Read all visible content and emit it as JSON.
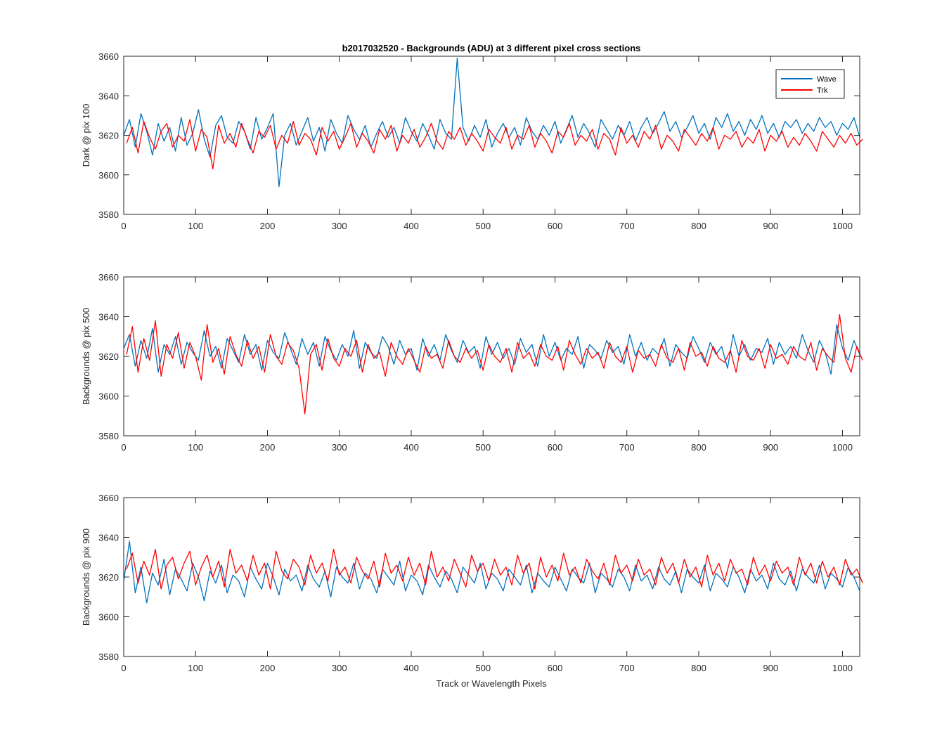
{
  "figure": {
    "title": "b2017032520 - Backgrounds (ADU) at 3 different pixel cross sections",
    "xlabel": "Track or Wavelength Pixels"
  },
  "legend": {
    "position": "top-right",
    "entries": [
      {
        "name": "Wave",
        "color": "#0072BD"
      },
      {
        "name": "Trk",
        "color": "#FF0000"
      }
    ]
  },
  "chart_data": [
    {
      "type": "line",
      "ylabel": "Dark @ pix 100",
      "xlim": [
        0,
        1024
      ],
      "ylim": [
        3580,
        3660
      ],
      "xticks": [
        0,
        100,
        200,
        300,
        400,
        500,
        600,
        700,
        800,
        900,
        1000
      ],
      "yticks": [
        3580,
        3600,
        3620,
        3640,
        3660
      ],
      "series": [
        {
          "name": "Wave",
          "color": "#0072BD",
          "x_step": 8,
          "x_start": 0,
          "values": [
            3620,
            3628,
            3614,
            3631,
            3622,
            3610,
            3626,
            3617,
            3624,
            3612,
            3629,
            3615,
            3621,
            3633,
            3618,
            3609,
            3625,
            3630,
            3619,
            3616,
            3627,
            3622,
            3613,
            3629,
            3618,
            3624,
            3631,
            3594,
            3620,
            3626,
            3615,
            3622,
            3629,
            3617,
            3624,
            3612,
            3628,
            3621,
            3616,
            3630,
            3623,
            3618,
            3625,
            3614,
            3621,
            3627,
            3619,
            3624,
            3616,
            3629,
            3622,
            3617,
            3626,
            3620,
            3613,
            3628,
            3621,
            3618,
            3659,
            3624,
            3617,
            3625,
            3619,
            3628,
            3614,
            3621,
            3626,
            3619,
            3624,
            3615,
            3629,
            3622,
            3618,
            3625,
            3620,
            3627,
            3616,
            3623,
            3630,
            3619,
            3626,
            3621,
            3614,
            3628,
            3623,
            3618,
            3625,
            3620,
            3627,
            3617,
            3624,
            3629,
            3621,
            3626,
            3632,
            3622,
            3627,
            3619,
            3624,
            3630,
            3621,
            3626,
            3618,
            3629,
            3624,
            3631,
            3622,
            3627,
            3620,
            3628,
            3623,
            3630,
            3621,
            3626,
            3619,
            3627,
            3624,
            3628,
            3621,
            3626,
            3622,
            3629,
            3624,
            3627,
            3620,
            3626,
            3623,
            3629,
            3619
          ]
        },
        {
          "name": "Trk",
          "color": "#FF0000",
          "x_step": 8,
          "x_start": 4,
          "values": [
            3616,
            3624,
            3611,
            3627,
            3619,
            3613,
            3622,
            3626,
            3614,
            3620,
            3617,
            3628,
            3612,
            3623,
            3619,
            3603,
            3625,
            3616,
            3621,
            3614,
            3626,
            3618,
            3611,
            3622,
            3619,
            3625,
            3613,
            3620,
            3616,
            3627,
            3615,
            3621,
            3618,
            3610,
            3624,
            3617,
            3622,
            3613,
            3619,
            3626,
            3614,
            3621,
            3617,
            3611,
            3623,
            3618,
            3625,
            3612,
            3620,
            3616,
            3623,
            3614,
            3619,
            3626,
            3617,
            3613,
            3622,
            3618,
            3624,
            3615,
            3621,
            3617,
            3612,
            3623,
            3619,
            3616,
            3624,
            3613,
            3620,
            3618,
            3625,
            3614,
            3621,
            3617,
            3611,
            3622,
            3619,
            3626,
            3615,
            3620,
            3617,
            3623,
            3613,
            3621,
            3618,
            3610,
            3624,
            3616,
            3620,
            3614,
            3622,
            3618,
            3625,
            3613,
            3620,
            3617,
            3612,
            3623,
            3619,
            3615,
            3621,
            3617,
            3624,
            3613,
            3620,
            3618,
            3622,
            3614,
            3619,
            3616,
            3623,
            3612,
            3620,
            3617,
            3622,
            3614,
            3619,
            3615,
            3621,
            3617,
            3612,
            3622,
            3618,
            3614,
            3620,
            3616,
            3621,
            3615,
            3618
          ]
        }
      ]
    },
    {
      "type": "line",
      "ylabel": "Backgrounds @ pix 500",
      "xlim": [
        0,
        1024
      ],
      "ylim": [
        3580,
        3660
      ],
      "xticks": [
        0,
        100,
        200,
        300,
        400,
        500,
        600,
        700,
        800,
        900,
        1000
      ],
      "yticks": [
        3580,
        3600,
        3620,
        3640,
        3660
      ],
      "series": [
        {
          "name": "Wave",
          "color": "#0072BD",
          "x_step": 8,
          "x_start": 0,
          "values": [
            3624,
            3631,
            3615,
            3628,
            3619,
            3634,
            3612,
            3626,
            3621,
            3630,
            3616,
            3627,
            3622,
            3618,
            3633,
            3620,
            3625,
            3614,
            3629,
            3623,
            3617,
            3631,
            3621,
            3626,
            3613,
            3628,
            3622,
            3619,
            3632,
            3624,
            3616,
            3629,
            3621,
            3627,
            3615,
            3630,
            3623,
            3618,
            3626,
            3620,
            3633,
            3614,
            3627,
            3622,
            3619,
            3630,
            3625,
            3616,
            3628,
            3621,
            3624,
            3613,
            3629,
            3620,
            3626,
            3618,
            3631,
            3623,
            3617,
            3628,
            3622,
            3625,
            3614,
            3630,
            3621,
            3627,
            3619,
            3624,
            3616,
            3629,
            3622,
            3626,
            3615,
            3631,
            3620,
            3627,
            3618,
            3624,
            3621,
            3630,
            3614,
            3626,
            3623,
            3619,
            3628,
            3622,
            3625,
            3616,
            3631,
            3620,
            3627,
            3618,
            3624,
            3621,
            3629,
            3615,
            3626,
            3622,
            3619,
            3630,
            3624,
            3617,
            3627,
            3621,
            3625,
            3614,
            3631,
            3620,
            3626,
            3618,
            3624,
            3622,
            3629,
            3616,
            3627,
            3621,
            3625,
            3619,
            3631,
            3623,
            3617,
            3628,
            3622,
            3611,
            3636,
            3624,
            3618,
            3628,
            3621
          ]
        },
        {
          "name": "Trk",
          "color": "#FF0000",
          "x_step": 8,
          "x_start": 4,
          "values": [
            3621,
            3635,
            3612,
            3629,
            3618,
            3638,
            3610,
            3626,
            3619,
            3632,
            3614,
            3627,
            3620,
            3608,
            3636,
            3617,
            3624,
            3611,
            3630,
            3621,
            3615,
            3628,
            3619,
            3625,
            3612,
            3631,
            3620,
            3616,
            3627,
            3623,
            3614,
            3591,
            3621,
            3626,
            3613,
            3629,
            3619,
            3615,
            3624,
            3620,
            3628,
            3612,
            3626,
            3619,
            3622,
            3610,
            3627,
            3620,
            3616,
            3624,
            3618,
            3612,
            3625,
            3619,
            3621,
            3614,
            3628,
            3620,
            3617,
            3624,
            3619,
            3623,
            3613,
            3626,
            3620,
            3617,
            3624,
            3612,
            3627,
            3619,
            3622,
            3615,
            3626,
            3620,
            3618,
            3625,
            3613,
            3628,
            3621,
            3616,
            3624,
            3619,
            3622,
            3614,
            3627,
            3620,
            3617,
            3625,
            3612,
            3623,
            3619,
            3621,
            3615,
            3626,
            3619,
            3617,
            3624,
            3613,
            3627,
            3620,
            3622,
            3615,
            3625,
            3619,
            3617,
            3623,
            3612,
            3628,
            3620,
            3618,
            3624,
            3614,
            3626,
            3619,
            3621,
            3616,
            3625,
            3620,
            3618,
            3627,
            3613,
            3624,
            3620,
            3617,
            3641,
            3619,
            3612,
            3625,
            3618
          ]
        }
      ]
    },
    {
      "type": "line",
      "ylabel": "Backgrounds @ pix 900",
      "xlim": [
        0,
        1024
      ],
      "ylim": [
        3580,
        3660
      ],
      "xticks": [
        0,
        100,
        200,
        300,
        400,
        500,
        600,
        700,
        800,
        900,
        1000
      ],
      "yticks": [
        3580,
        3600,
        3620,
        3640,
        3660
      ],
      "series": [
        {
          "name": "Wave",
          "color": "#0072BD",
          "x_step": 8,
          "x_start": 0,
          "values": [
            3618,
            3638,
            3612,
            3625,
            3607,
            3622,
            3616,
            3629,
            3611,
            3624,
            3619,
            3613,
            3627,
            3620,
            3608,
            3623,
            3617,
            3626,
            3612,
            3621,
            3618,
            3610,
            3625,
            3619,
            3614,
            3627,
            3620,
            3611,
            3624,
            3618,
            3621,
            3613,
            3626,
            3619,
            3615,
            3623,
            3610,
            3625,
            3620,
            3617,
            3627,
            3614,
            3622,
            3619,
            3612,
            3624,
            3620,
            3616,
            3628,
            3613,
            3621,
            3618,
            3611,
            3626,
            3620,
            3615,
            3623,
            3619,
            3612,
            3625,
            3621,
            3617,
            3627,
            3614,
            3622,
            3619,
            3613,
            3624,
            3620,
            3616,
            3626,
            3612,
            3622,
            3618,
            3615,
            3625,
            3619,
            3613,
            3624,
            3620,
            3617,
            3627,
            3612,
            3622,
            3619,
            3615,
            3624,
            3620,
            3613,
            3626,
            3618,
            3621,
            3614,
            3625,
            3619,
            3616,
            3623,
            3612,
            3624,
            3620,
            3617,
            3626,
            3613,
            3622,
            3619,
            3615,
            3625,
            3620,
            3612,
            3624,
            3618,
            3621,
            3614,
            3627,
            3619,
            3616,
            3623,
            3613,
            3624,
            3620,
            3617,
            3626,
            3614,
            3622,
            3619,
            3615,
            3625,
            3620,
            3613
          ]
        },
        {
          "name": "Trk",
          "color": "#FF0000",
          "x_step": 8,
          "x_start": 4,
          "values": [
            3624,
            3632,
            3617,
            3628,
            3621,
            3634,
            3614,
            3626,
            3630,
            3619,
            3627,
            3633,
            3616,
            3625,
            3631,
            3620,
            3628,
            3615,
            3634,
            3622,
            3626,
            3618,
            3631,
            3621,
            3627,
            3614,
            3633,
            3623,
            3619,
            3629,
            3625,
            3616,
            3631,
            3622,
            3627,
            3618,
            3634,
            3621,
            3625,
            3617,
            3630,
            3623,
            3619,
            3628,
            3615,
            3632,
            3622,
            3626,
            3618,
            3630,
            3621,
            3627,
            3616,
            3633,
            3620,
            3625,
            3618,
            3629,
            3622,
            3615,
            3631,
            3623,
            3627,
            3618,
            3629,
            3621,
            3625,
            3616,
            3631,
            3622,
            3627,
            3614,
            3630,
            3620,
            3626,
            3618,
            3632,
            3621,
            3625,
            3617,
            3629,
            3623,
            3619,
            3627,
            3616,
            3631,
            3622,
            3626,
            3618,
            3629,
            3621,
            3624,
            3616,
            3630,
            3622,
            3627,
            3617,
            3629,
            3620,
            3625,
            3615,
            3631,
            3621,
            3627,
            3618,
            3629,
            3622,
            3624,
            3616,
            3630,
            3621,
            3626,
            3618,
            3628,
            3622,
            3625,
            3616,
            3630,
            3621,
            3627,
            3617,
            3628,
            3620,
            3625,
            3616,
            3629,
            3621,
            3624,
            3617
          ]
        }
      ]
    }
  ]
}
